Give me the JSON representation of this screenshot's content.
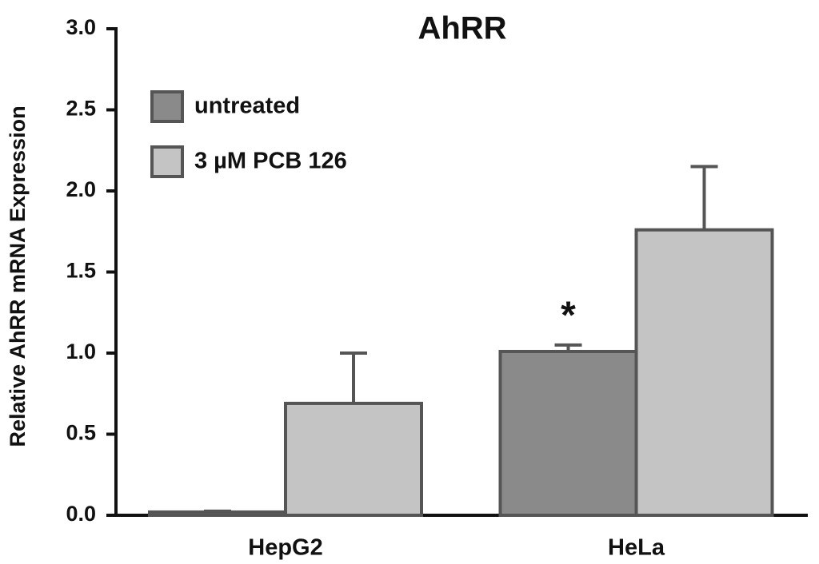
{
  "chart_data": {
    "type": "bar",
    "title": "AhRR",
    "ylabel": "Relative AhRR mRNA Expression",
    "categories": [
      "HepG2",
      "HeLa"
    ],
    "series": [
      {
        "name": "untreated",
        "color": "#8a8a8a",
        "values": [
          0.02,
          1.01
        ],
        "errors": [
          0.005,
          0.04
        ]
      },
      {
        "name": "3 µM PCB 126",
        "color": "#c4c4c4",
        "values": [
          0.69,
          1.76
        ],
        "errors": [
          0.31,
          0.39
        ]
      }
    ],
    "annotations": [
      {
        "text": "*",
        "category": 1,
        "series": 0
      }
    ],
    "ylim": [
      0,
      3
    ],
    "yticks": [
      {
        "value": 0,
        "label": "0.0"
      },
      0.5,
      {
        "value": 1,
        "label": "1.0"
      },
      1.5,
      {
        "value": 2,
        "label": "2.0"
      },
      2.5,
      {
        "value": 3,
        "label": "3.0"
      }
    ],
    "legend": "upper left"
  }
}
